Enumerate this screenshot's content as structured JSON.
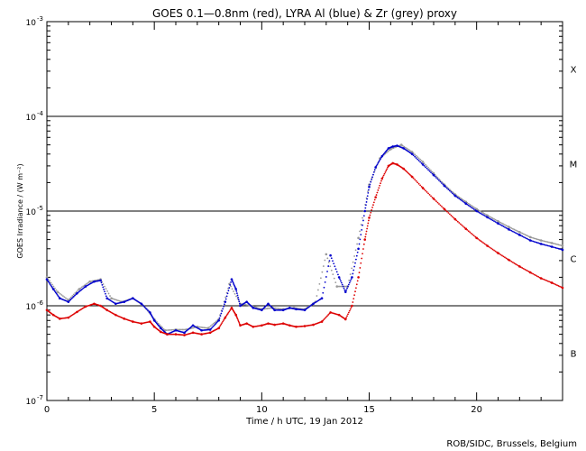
{
  "chart_data": {
    "type": "scatter",
    "title": "GOES 0.1—0.8nm (red), LYRA Al (blue) & Zr (grey) proxy",
    "xlabel": "Time / h UTC, 19 Jan 2012",
    "ylabel": "GOES Irradiance / (W m⁻²)",
    "xlim": [
      0,
      24
    ],
    "ylim_log10": [
      -7,
      -3
    ],
    "x_ticks": [
      0,
      5,
      10,
      15,
      20
    ],
    "x_tick_labels": [
      "0",
      "5",
      "10",
      "15",
      "20"
    ],
    "y_ticks_log10": [
      -7,
      -6,
      -5,
      -4,
      -3
    ],
    "y_tick_mantissa": "10",
    "y_tick_exponents": [
      "-7",
      "-6",
      "-5",
      "-4",
      "-3"
    ],
    "flare_class_levels": [
      {
        "label": "X",
        "log10": -3.5
      },
      {
        "label": "M",
        "log10": -4.5
      },
      {
        "label": "C",
        "log10": -5.5
      },
      {
        "label": "B",
        "log10": -6.5
      }
    ],
    "reference_lines_log10": [
      -6,
      -5,
      -4
    ],
    "footer": "ROB/SIDC, Brussels, Belgium",
    "colors": {
      "goes": "#dd0000",
      "lyra_al": "#0000cc",
      "lyra_zr": "#999999",
      "axis": "#000000"
    },
    "series": [
      {
        "name": "GOES 0.1-0.8nm",
        "color": "#dd0000",
        "x": [
          0.0,
          0.3,
          0.6,
          1.0,
          1.4,
          1.8,
          2.2,
          2.5,
          2.8,
          3.2,
          3.6,
          4.0,
          4.4,
          4.8,
          5.0,
          5.3,
          5.6,
          6.0,
          6.4,
          6.8,
          7.2,
          7.6,
          8.0,
          8.3,
          8.6,
          8.8,
          9.0,
          9.3,
          9.6,
          10.0,
          10.3,
          10.6,
          11.0,
          11.3,
          11.6,
          12.0,
          12.4,
          12.8,
          13.2,
          13.6,
          13.9,
          14.2,
          14.5,
          14.8,
          15.0,
          15.3,
          15.6,
          15.9,
          16.1,
          16.3,
          16.6,
          17.0,
          17.5,
          18.0,
          18.5,
          19.0,
          19.5,
          20.0,
          20.5,
          21.0,
          21.5,
          22.0,
          22.5,
          23.0,
          23.5,
          24.0
        ],
        "y": [
          9e-07,
          8e-07,
          7.3e-07,
          7.5e-07,
          8.6e-07,
          9.8e-07,
          1.05e-06,
          1e-06,
          9e-07,
          8e-07,
          7.3e-07,
          6.8e-07,
          6.5e-07,
          6.8e-07,
          6e-07,
          5.3e-07,
          5e-07,
          5e-07,
          4.9e-07,
          5.2e-07,
          5e-07,
          5.2e-07,
          5.8e-07,
          7.5e-07,
          9.5e-07,
          8e-07,
          6.2e-07,
          6.5e-07,
          6e-07,
          6.2e-07,
          6.5e-07,
          6.3e-07,
          6.5e-07,
          6.2e-07,
          6e-07,
          6.1e-07,
          6.3e-07,
          6.8e-07,
          8.5e-07,
          8e-07,
          7.2e-07,
          1e-06,
          2e-06,
          5e-06,
          8.5e-06,
          1.4e-05,
          2.2e-05,
          3e-05,
          3.2e-05,
          3.1e-05,
          2.8e-05,
          2.3e-05,
          1.75e-05,
          1.35e-05,
          1.05e-05,
          8.2e-06,
          6.5e-06,
          5.2e-06,
          4.3e-06,
          3.6e-06,
          3.05e-06,
          2.6e-06,
          2.25e-06,
          1.95e-06,
          1.75e-06,
          1.55e-06
        ]
      },
      {
        "name": "LYRA Al proxy",
        "color": "#0000cc",
        "x": [
          0.0,
          0.3,
          0.6,
          1.0,
          1.4,
          1.8,
          2.2,
          2.5,
          2.8,
          3.2,
          3.6,
          4.0,
          4.4,
          4.8,
          5.0,
          5.3,
          5.6,
          6.0,
          6.4,
          6.8,
          7.2,
          7.6,
          8.0,
          8.3,
          8.6,
          8.8,
          9.0,
          9.3,
          9.6,
          10.0,
          10.3,
          10.6,
          11.0,
          11.3,
          11.6,
          12.0,
          12.4,
          12.8,
          13.2,
          13.6,
          13.9,
          14.2,
          14.5,
          14.8,
          15.0,
          15.3,
          15.6,
          15.9,
          16.1,
          16.3,
          16.6,
          17.0,
          17.5,
          18.0,
          18.5,
          19.0,
          19.5,
          20.0,
          20.5,
          21.0,
          21.5,
          22.0,
          22.5,
          23.0,
          23.5,
          24.0
        ],
        "y": [
          1.9e-06,
          1.5e-06,
          1.2e-06,
          1.1e-06,
          1.35e-06,
          1.6e-06,
          1.8e-06,
          1.85e-06,
          1.2e-06,
          1.05e-06,
          1.1e-06,
          1.2e-06,
          1.05e-06,
          8.5e-07,
          7e-07,
          5.8e-07,
          5e-07,
          5.5e-07,
          5.2e-07,
          6.2e-07,
          5.5e-07,
          5.6e-07,
          7e-07,
          1.1e-06,
          1.9e-06,
          1.5e-06,
          1e-06,
          1.1e-06,
          9.5e-07,
          9e-07,
          1.05e-06,
          9e-07,
          9e-07,
          9.5e-07,
          9.2e-07,
          9e-07,
          1.05e-06,
          1.2e-06,
          3.4e-06,
          2e-06,
          1.4e-06,
          2e-06,
          4e-06,
          1e-05,
          1.8e-05,
          2.9e-05,
          3.8e-05,
          4.6e-05,
          4.8e-05,
          4.9e-05,
          4.6e-05,
          4e-05,
          3.1e-05,
          2.4e-05,
          1.85e-05,
          1.45e-05,
          1.2e-05,
          1e-05,
          8.6e-06,
          7.4e-06,
          6.4e-06,
          5.6e-06,
          4.9e-06,
          4.5e-06,
          4.2e-06,
          3.9e-06
        ]
      },
      {
        "name": "LYRA Zr proxy",
        "color": "#999999",
        "x": [
          0.0,
          0.5,
          1.0,
          1.5,
          2.0,
          2.5,
          3.0,
          3.5,
          4.0,
          4.5,
          5.0,
          5.5,
          6.0,
          6.5,
          7.0,
          7.5,
          8.0,
          8.5,
          9.0,
          9.5,
          10.0,
          10.5,
          11.0,
          11.5,
          12.0,
          12.5,
          13.0,
          13.5,
          14.0,
          14.5,
          15.0,
          15.5,
          16.0,
          16.5,
          17.0,
          17.5,
          18.0,
          18.5,
          19.0,
          19.5,
          20.0,
          20.5,
          21.0,
          21.5,
          22.0,
          22.5,
          23.0,
          23.5,
          24.0
        ],
        "y": [
          2e-06,
          1.4e-06,
          1.15e-06,
          1.5e-06,
          1.8e-06,
          1.9e-06,
          1.2e-06,
          1.1e-06,
          1.2e-06,
          1e-06,
          7.2e-07,
          5.5e-07,
          5.6e-07,
          5.6e-07,
          6e-07,
          5.8e-07,
          7.2e-07,
          1.7e-06,
          1.05e-06,
          1e-06,
          9.2e-07,
          9.5e-07,
          9.2e-07,
          9.5e-07,
          9.2e-07,
          1.1e-06,
          3.5e-06,
          1.6e-06,
          1.6e-06,
          5.2e-06,
          1.9e-05,
          3.6e-05,
          4.5e-05,
          5e-05,
          4.2e-05,
          3.3e-05,
          2.5e-05,
          1.9e-05,
          1.5e-05,
          1.25e-05,
          1.05e-05,
          9e-06,
          7.8e-06,
          6.8e-06,
          6e-06,
          5.3e-06,
          4.9e-06,
          4.6e-06,
          4.3e-06
        ]
      }
    ]
  }
}
